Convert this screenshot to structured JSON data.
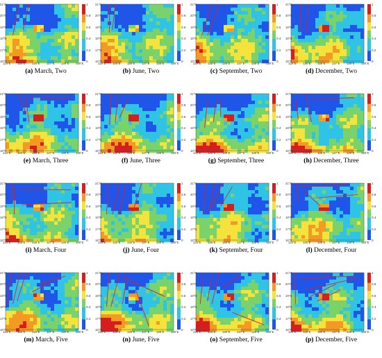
{
  "x_ticks": [
    "124°E",
    "125°E",
    "126°E",
    "127°E",
    "128°E",
    "129°E"
  ],
  "y_ticks": [
    "21°N",
    "20°N",
    "19°N",
    "18°N",
    "17°N",
    "16°N"
  ],
  "colorbar_ticks": [
    "1",
    "0.8",
    "0.6",
    "0.4",
    "0.2",
    "0"
  ],
  "colors": {
    "deep_blue": "#0a1a9c",
    "blue": "#1f55e8",
    "cyan": "#2fc4e6",
    "green": "#7ad36a",
    "yellow": "#f4e33a",
    "orange": "#f39a24",
    "red": "#d61e1e",
    "line_red": "#e02020"
  },
  "panels": [
    {
      "letter": "(a)",
      "label": "March, Two",
      "lines": [
        [
          0.18,
          0.0,
          0.1,
          0.55
        ],
        [
          0.32,
          0.0,
          0.24,
          0.45
        ]
      ]
    },
    {
      "letter": "(b)",
      "label": "June, Two",
      "lines": [
        [
          0.12,
          0.0,
          0.12,
          0.5
        ],
        [
          0.2,
          0.0,
          0.16,
          0.45
        ]
      ]
    },
    {
      "letter": "(c)",
      "label": "September, Two",
      "lines": [
        [
          0.22,
          0.0,
          0.08,
          0.55
        ],
        [
          0.32,
          0.0,
          0.16,
          0.55
        ]
      ]
    },
    {
      "letter": "(d)",
      "label": "December, Two",
      "lines": [
        [
          0.14,
          0.0,
          0.12,
          0.5
        ],
        [
          0.24,
          0.0,
          0.2,
          0.5
        ]
      ]
    },
    {
      "letter": "(e)",
      "label": "March, Three",
      "lines": [
        [
          0.18,
          0.0,
          0.28,
          0.35
        ],
        [
          0.28,
          0.07,
          0.9,
          0.07
        ],
        [
          0.28,
          0.07,
          0.32,
          0.5
        ]
      ]
    },
    {
      "letter": "(f)",
      "label": "June, Three",
      "lines": [
        [
          0.14,
          0.0,
          0.12,
          0.55
        ],
        [
          0.24,
          0.0,
          0.2,
          0.5
        ],
        [
          0.38,
          0.08,
          0.26,
          0.42
        ]
      ]
    },
    {
      "letter": "(g)",
      "label": "September, Three",
      "lines": [
        [
          0.16,
          0.1,
          0.12,
          0.6
        ],
        [
          0.28,
          0.1,
          0.24,
          0.5
        ],
        [
          0.34,
          0.1,
          0.34,
          0.4
        ]
      ]
    },
    {
      "letter": "(h)",
      "label": "December, Three",
      "lines": [
        [
          0.2,
          0.0,
          0.28,
          0.5
        ],
        [
          0.28,
          0.1,
          0.86,
          0.07
        ],
        [
          0.06,
          0.07,
          0.1,
          0.45
        ]
      ]
    },
    {
      "letter": "(i)",
      "label": "March, Four",
      "lines": [
        [
          0.12,
          0.05,
          0.12,
          0.55
        ],
        [
          0.2,
          0.1,
          0.9,
          0.12
        ],
        [
          0.22,
          0.38,
          0.9,
          0.34
        ],
        [
          0.08,
          0.0,
          0.1,
          0.35
        ]
      ]
    },
    {
      "letter": "(j)",
      "label": "June, Four",
      "lines": [
        [
          0.1,
          0.0,
          0.08,
          0.55
        ],
        [
          0.26,
          0.0,
          0.16,
          0.55
        ],
        [
          0.34,
          0.06,
          0.24,
          0.55
        ],
        [
          0.56,
          0.0,
          0.44,
          0.5
        ]
      ]
    },
    {
      "letter": "(k)",
      "label": "September, Four",
      "lines": [
        [
          0.14,
          0.0,
          0.1,
          0.55
        ],
        [
          0.26,
          0.0,
          0.18,
          0.5
        ],
        [
          0.36,
          0.0,
          0.22,
          0.45
        ],
        [
          0.5,
          0.06,
          0.34,
          0.4
        ]
      ]
    },
    {
      "letter": "(l)",
      "label": "December, Four",
      "lines": [
        [
          0.12,
          0.06,
          0.76,
          0.04
        ],
        [
          0.18,
          0.14,
          0.4,
          0.4
        ],
        [
          0.34,
          0.26,
          0.92,
          0.2
        ],
        [
          0.08,
          0.0,
          0.1,
          0.35
        ]
      ]
    },
    {
      "letter": "(m)",
      "label": "March, Five",
      "lines": [
        [
          0.08,
          0.0,
          0.02,
          0.55
        ],
        [
          0.2,
          0.0,
          0.1,
          0.55
        ],
        [
          0.28,
          0.0,
          0.16,
          0.5
        ],
        [
          0.36,
          0.34,
          0.6,
          0.18
        ],
        [
          0.46,
          0.2,
          0.82,
          0.06
        ]
      ]
    },
    {
      "letter": "(n)",
      "label": "June, Five",
      "lines": [
        [
          0.12,
          0.0,
          0.08,
          0.6
        ],
        [
          0.26,
          0.02,
          0.14,
          0.6
        ],
        [
          0.36,
          0.06,
          0.3,
          0.55
        ],
        [
          0.3,
          0.08,
          0.88,
          0.42
        ],
        [
          0.48,
          0.3,
          0.66,
          0.94
        ]
      ]
    },
    {
      "letter": "(o)",
      "label": "September, Five",
      "lines": [
        [
          0.1,
          0.04,
          0.06,
          0.55
        ],
        [
          0.22,
          0.04,
          0.16,
          0.5
        ],
        [
          0.32,
          0.0,
          0.22,
          0.55
        ],
        [
          0.38,
          0.25,
          0.6,
          0.06
        ],
        [
          0.5,
          0.7,
          0.94,
          0.92
        ]
      ]
    },
    {
      "letter": "(p)",
      "label": "December, Five",
      "lines": [
        [
          0.06,
          0.0,
          0.06,
          0.55
        ],
        [
          0.14,
          0.1,
          0.86,
          0.06
        ],
        [
          0.2,
          0.3,
          0.9,
          0.1
        ],
        [
          0.26,
          0.42,
          0.62,
          0.2
        ],
        [
          0.36,
          0.5,
          0.68,
          0.3
        ]
      ]
    }
  ]
}
